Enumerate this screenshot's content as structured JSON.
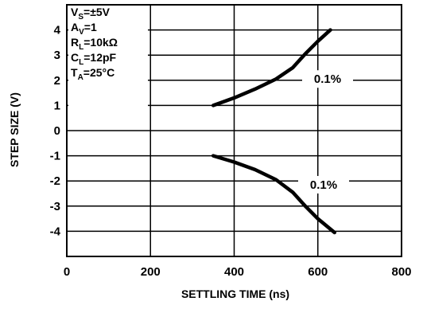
{
  "chart_data": {
    "type": "line",
    "xlabel": "SETTLING TIME (ns)",
    "ylabel": "STEP SIZE (V)",
    "xlim": [
      0,
      800
    ],
    "ylim": [
      -5,
      5
    ],
    "x_ticks": [
      "0",
      "200",
      "400",
      "600",
      "800"
    ],
    "y_ticks": [
      "4",
      "3",
      "2",
      "1",
      "0",
      "-1",
      "-2",
      "-3",
      "-4"
    ],
    "grid": true,
    "conditions": [
      {
        "main": "V",
        "sub": "S",
        "rest": "=±5V"
      },
      {
        "main": "A",
        "sub": "V",
        "rest": "=1"
      },
      {
        "main": "R",
        "sub": "L",
        "rest": "=10kΩ"
      },
      {
        "main": "C",
        "sub": "L",
        "rest": "=12pF"
      },
      {
        "main": "T",
        "sub": "A",
        "rest": "=25°C"
      }
    ],
    "series": [
      {
        "name": "0.1%",
        "x": [
          350,
          400,
          450,
          500,
          540,
          570,
          600,
          630
        ],
        "y": [
          1,
          1.3,
          1.65,
          2.05,
          2.5,
          3.05,
          3.55,
          4.0
        ]
      },
      {
        "name": "0.1%",
        "x": [
          350,
          400,
          450,
          500,
          540,
          570,
          600,
          640
        ],
        "y": [
          -1,
          -1.25,
          -1.55,
          -1.95,
          -2.45,
          -3.0,
          -3.5,
          -4.05
        ]
      }
    ]
  }
}
